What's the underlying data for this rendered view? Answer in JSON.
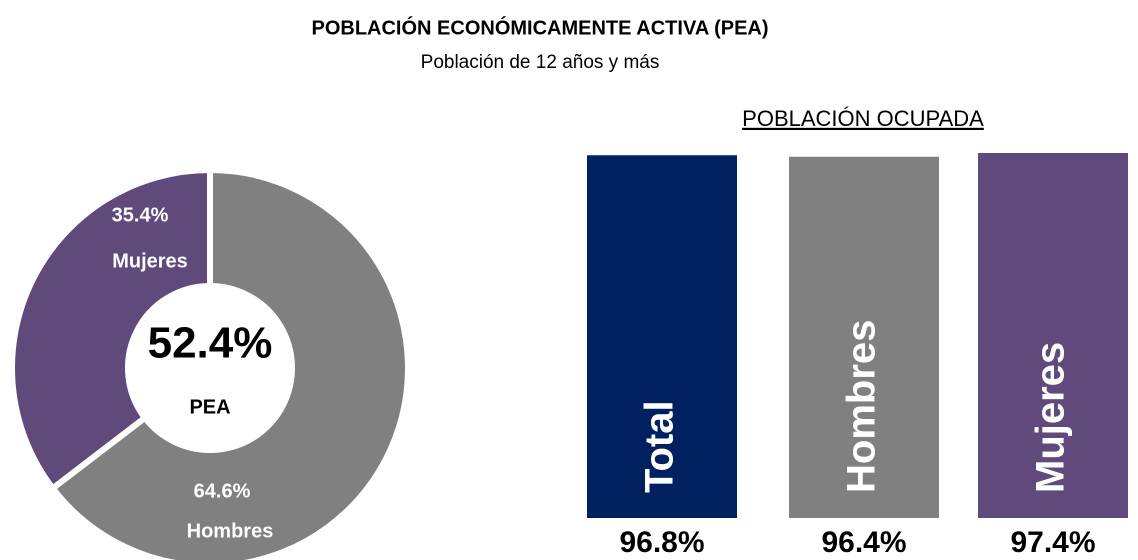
{
  "header": {
    "title": "POBLACIÓN ECONÓMICAMENTE ACTIVA (PEA)",
    "subtitle": "Población de 12 años y más"
  },
  "chart_data": [
    {
      "type": "donut",
      "categories": [
        "Mujeres",
        "Hombres"
      ],
      "values": [
        35.4,
        64.6
      ],
      "value_labels": [
        "35.4%",
        "64.6%"
      ],
      "colors": [
        "#604a7b",
        "#808080"
      ],
      "center_label": "52.4%",
      "center_sublabel": "PEA"
    },
    {
      "type": "bar",
      "title": "POBLACIÓN OCUPADA",
      "categories": [
        "Total",
        "Hombres",
        "Mujeres"
      ],
      "values": [
        96.8,
        96.4,
        97.4
      ],
      "value_labels": [
        "96.8%",
        "96.4%",
        "97.4%"
      ],
      "colors": [
        "#002060",
        "#808080",
        "#604a7b"
      ],
      "ylim": [
        0,
        100
      ]
    }
  ]
}
